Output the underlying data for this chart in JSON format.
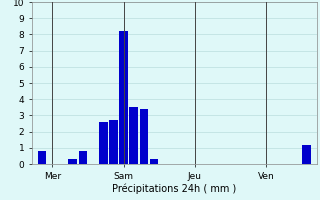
{
  "title": "",
  "xlabel": "Précipitations 24h ( mm )",
  "ylabel": "",
  "background_color": "#dff8f8",
  "bar_color": "#0000cc",
  "grid_color_h": "#bbdddd",
  "grid_color_v": "#bbdddd",
  "ylim": [
    0,
    10
  ],
  "xlim": [
    0,
    28
  ],
  "yticks": [
    0,
    1,
    2,
    3,
    4,
    5,
    6,
    7,
    8,
    9,
    10
  ],
  "day_labels": [
    "Mer",
    "Sam",
    "Jeu",
    "Ven"
  ],
  "day_positions": [
    2,
    9,
    16,
    23
  ],
  "vline_positions": [
    2,
    9,
    16,
    23
  ],
  "bar_x": [
    1,
    4,
    5,
    7,
    8,
    9,
    10,
    11,
    12,
    27
  ],
  "bar_heights": [
    0.8,
    0.3,
    0.8,
    2.6,
    2.7,
    8.2,
    3.5,
    3.4,
    0.3,
    1.2
  ],
  "bar_width": 0.85,
  "xlabel_fontsize": 7,
  "tick_fontsize": 6.5
}
